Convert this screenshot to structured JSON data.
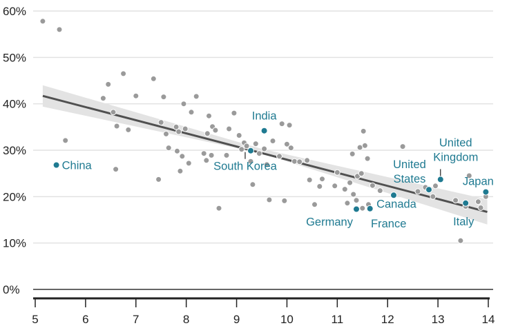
{
  "chart_data": {
    "type": "scatter",
    "title": "",
    "xlabel": "",
    "ylabel": "",
    "xlim": [
      5,
      14
    ],
    "ylim": [
      0,
      60
    ],
    "x_ticks": [
      "5",
      "6",
      "7",
      "8",
      "9",
      "10",
      "11",
      "12",
      "13",
      "14"
    ],
    "y_ticks": [
      "0%",
      "10%",
      "20%",
      "30%",
      "40%",
      "50%",
      "60%"
    ],
    "grid": true,
    "series": [
      {
        "points": [
          [
            5.15,
            57.8
          ],
          [
            5.48,
            56.0
          ],
          [
            5.6,
            32.1
          ],
          [
            6.35,
            41.2
          ],
          [
            6.45,
            44.2
          ],
          [
            6.55,
            38.2
          ],
          [
            6.6,
            25.9
          ],
          [
            6.62,
            35.2
          ],
          [
            6.75,
            46.5
          ],
          [
            6.85,
            34.4
          ],
          [
            7.0,
            41.7
          ],
          [
            7.35,
            45.4
          ],
          [
            7.45,
            23.7
          ],
          [
            7.5,
            36.0
          ],
          [
            7.55,
            41.5
          ],
          [
            7.6,
            33.5
          ],
          [
            7.65,
            30.5
          ],
          [
            7.8,
            35.0
          ],
          [
            7.82,
            29.8
          ],
          [
            7.85,
            34.0
          ],
          [
            7.88,
            25.5
          ],
          [
            7.92,
            28.7
          ],
          [
            7.95,
            40.0
          ],
          [
            7.98,
            34.6
          ],
          [
            8.05,
            27.2
          ],
          [
            8.1,
            38.2
          ],
          [
            8.2,
            41.6
          ],
          [
            8.35,
            29.3
          ],
          [
            8.4,
            27.8
          ],
          [
            8.42,
            33.6
          ],
          [
            8.45,
            37.4
          ],
          [
            8.5,
            28.9
          ],
          [
            8.52,
            35.1
          ],
          [
            8.58,
            34.3
          ],
          [
            8.65,
            17.5
          ],
          [
            8.8,
            28.9
          ],
          [
            8.85,
            34.6
          ],
          [
            8.95,
            38.0
          ],
          [
            9.05,
            33.2
          ],
          [
            9.1,
            30.2
          ],
          [
            9.15,
            31.6
          ],
          [
            9.2,
            30.9
          ],
          [
            9.28,
            27.6
          ],
          [
            9.32,
            22.6
          ],
          [
            9.38,
            31.4
          ],
          [
            9.45,
            29.3
          ],
          [
            9.55,
            30.3
          ],
          [
            9.6,
            26.9
          ],
          [
            9.65,
            19.3
          ],
          [
            9.72,
            32.0
          ],
          [
            9.85,
            28.7
          ],
          [
            9.9,
            35.7
          ],
          [
            9.95,
            19.1
          ],
          [
            10.0,
            31.3
          ],
          [
            10.05,
            35.4
          ],
          [
            10.08,
            30.5
          ],
          [
            10.15,
            27.6
          ],
          [
            10.25,
            27.5
          ],
          [
            10.4,
            27.8
          ],
          [
            10.45,
            23.6
          ],
          [
            10.55,
            18.3
          ],
          [
            10.65,
            22.2
          ],
          [
            10.7,
            23.8
          ],
          [
            10.95,
            22.3
          ],
          [
            11.0,
            25.2
          ],
          [
            11.15,
            21.6
          ],
          [
            11.2,
            18.6
          ],
          [
            11.25,
            23.0
          ],
          [
            11.3,
            29.2
          ],
          [
            11.32,
            20.5
          ],
          [
            11.38,
            19.2
          ],
          [
            11.4,
            24.4
          ],
          [
            11.45,
            30.6
          ],
          [
            11.48,
            25.0
          ],
          [
            11.5,
            17.5
          ],
          [
            11.52,
            34.1
          ],
          [
            11.55,
            31.0
          ],
          [
            11.6,
            28.2
          ],
          [
            11.62,
            18.3
          ],
          [
            11.7,
            22.4
          ],
          [
            11.85,
            21.3
          ],
          [
            12.3,
            30.8
          ],
          [
            12.6,
            21.1
          ],
          [
            12.75,
            22.0
          ],
          [
            12.9,
            20.0
          ],
          [
            12.95,
            22.3
          ],
          [
            13.35,
            19.2
          ],
          [
            13.45,
            10.5
          ],
          [
            13.55,
            17.9
          ],
          [
            13.62,
            24.5
          ],
          [
            13.8,
            18.9
          ],
          [
            13.85,
            17.6
          ],
          [
            13.95,
            20.0
          ]
        ]
      }
    ],
    "highlighted": [
      {
        "label": "China",
        "x": 5.42,
        "y": 26.8
      },
      {
        "label": "India",
        "x": 9.55,
        "y": 34.2
      },
      {
        "label": "South Korea",
        "x": 9.28,
        "y": 29.9
      },
      {
        "label": "Germany",
        "x": 11.38,
        "y": 17.3
      },
      {
        "label": "France",
        "x": 11.65,
        "y": 17.4
      },
      {
        "label": "Canada",
        "x": 12.12,
        "y": 20.3
      },
      {
        "label_lines": [
          "United",
          "States"
        ],
        "x": 12.82,
        "y": 21.5
      },
      {
        "label_lines": [
          "United",
          "Kingdom"
        ],
        "x": 13.05,
        "y": 23.7
      },
      {
        "label": "Japan",
        "x": 13.95,
        "y": 21.0
      },
      {
        "label": "Italy",
        "x": 13.55,
        "y": 18.6
      }
    ],
    "trend_line": {
      "x": [
        5.15,
        13.98
      ],
      "y": [
        41.7,
        16.7
      ]
    },
    "confidence_band": {
      "x": [
        5.15,
        9.5,
        13.98
      ],
      "upper": [
        44.0,
        30.3,
        19.4
      ],
      "lower": [
        39.4,
        29.3,
        14.0
      ]
    }
  }
}
